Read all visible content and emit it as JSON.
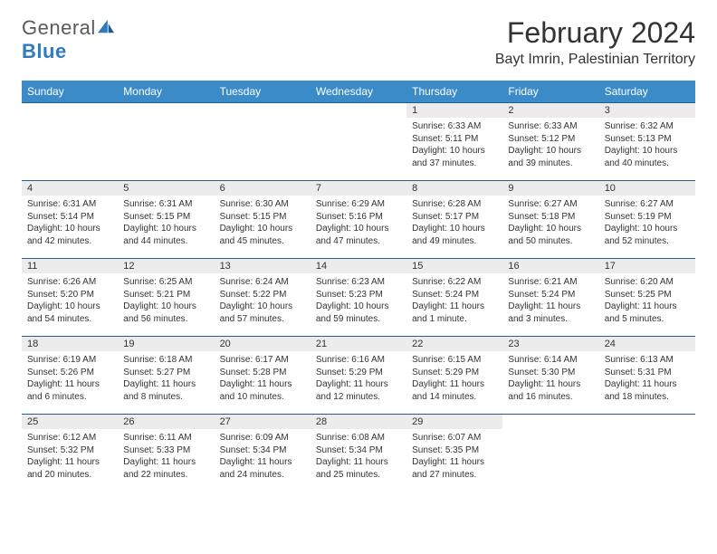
{
  "logo": {
    "text1": "General",
    "text2": "Blue"
  },
  "title": "February 2024",
  "location": "Bayt Imrin, Palestinian Territory",
  "weekdays": [
    "Sunday",
    "Monday",
    "Tuesday",
    "Wednesday",
    "Thursday",
    "Friday",
    "Saturday"
  ],
  "colors": {
    "header_bg": "#3b8bc9",
    "border": "#2d5c8a",
    "daynum_bg": "#ececec",
    "logo_blue": "#2f7bbf"
  },
  "weeks": [
    [
      {
        "n": "",
        "sr": "",
        "ss": "",
        "dl": ""
      },
      {
        "n": "",
        "sr": "",
        "ss": "",
        "dl": ""
      },
      {
        "n": "",
        "sr": "",
        "ss": "",
        "dl": ""
      },
      {
        "n": "",
        "sr": "",
        "ss": "",
        "dl": ""
      },
      {
        "n": "1",
        "sr": "Sunrise: 6:33 AM",
        "ss": "Sunset: 5:11 PM",
        "dl": "Daylight: 10 hours and 37 minutes."
      },
      {
        "n": "2",
        "sr": "Sunrise: 6:33 AM",
        "ss": "Sunset: 5:12 PM",
        "dl": "Daylight: 10 hours and 39 minutes."
      },
      {
        "n": "3",
        "sr": "Sunrise: 6:32 AM",
        "ss": "Sunset: 5:13 PM",
        "dl": "Daylight: 10 hours and 40 minutes."
      }
    ],
    [
      {
        "n": "4",
        "sr": "Sunrise: 6:31 AM",
        "ss": "Sunset: 5:14 PM",
        "dl": "Daylight: 10 hours and 42 minutes."
      },
      {
        "n": "5",
        "sr": "Sunrise: 6:31 AM",
        "ss": "Sunset: 5:15 PM",
        "dl": "Daylight: 10 hours and 44 minutes."
      },
      {
        "n": "6",
        "sr": "Sunrise: 6:30 AM",
        "ss": "Sunset: 5:15 PM",
        "dl": "Daylight: 10 hours and 45 minutes."
      },
      {
        "n": "7",
        "sr": "Sunrise: 6:29 AM",
        "ss": "Sunset: 5:16 PM",
        "dl": "Daylight: 10 hours and 47 minutes."
      },
      {
        "n": "8",
        "sr": "Sunrise: 6:28 AM",
        "ss": "Sunset: 5:17 PM",
        "dl": "Daylight: 10 hours and 49 minutes."
      },
      {
        "n": "9",
        "sr": "Sunrise: 6:27 AM",
        "ss": "Sunset: 5:18 PM",
        "dl": "Daylight: 10 hours and 50 minutes."
      },
      {
        "n": "10",
        "sr": "Sunrise: 6:27 AM",
        "ss": "Sunset: 5:19 PM",
        "dl": "Daylight: 10 hours and 52 minutes."
      }
    ],
    [
      {
        "n": "11",
        "sr": "Sunrise: 6:26 AM",
        "ss": "Sunset: 5:20 PM",
        "dl": "Daylight: 10 hours and 54 minutes."
      },
      {
        "n": "12",
        "sr": "Sunrise: 6:25 AM",
        "ss": "Sunset: 5:21 PM",
        "dl": "Daylight: 10 hours and 56 minutes."
      },
      {
        "n": "13",
        "sr": "Sunrise: 6:24 AM",
        "ss": "Sunset: 5:22 PM",
        "dl": "Daylight: 10 hours and 57 minutes."
      },
      {
        "n": "14",
        "sr": "Sunrise: 6:23 AM",
        "ss": "Sunset: 5:23 PM",
        "dl": "Daylight: 10 hours and 59 minutes."
      },
      {
        "n": "15",
        "sr": "Sunrise: 6:22 AM",
        "ss": "Sunset: 5:24 PM",
        "dl": "Daylight: 11 hours and 1 minute."
      },
      {
        "n": "16",
        "sr": "Sunrise: 6:21 AM",
        "ss": "Sunset: 5:24 PM",
        "dl": "Daylight: 11 hours and 3 minutes."
      },
      {
        "n": "17",
        "sr": "Sunrise: 6:20 AM",
        "ss": "Sunset: 5:25 PM",
        "dl": "Daylight: 11 hours and 5 minutes."
      }
    ],
    [
      {
        "n": "18",
        "sr": "Sunrise: 6:19 AM",
        "ss": "Sunset: 5:26 PM",
        "dl": "Daylight: 11 hours and 6 minutes."
      },
      {
        "n": "19",
        "sr": "Sunrise: 6:18 AM",
        "ss": "Sunset: 5:27 PM",
        "dl": "Daylight: 11 hours and 8 minutes."
      },
      {
        "n": "20",
        "sr": "Sunrise: 6:17 AM",
        "ss": "Sunset: 5:28 PM",
        "dl": "Daylight: 11 hours and 10 minutes."
      },
      {
        "n": "21",
        "sr": "Sunrise: 6:16 AM",
        "ss": "Sunset: 5:29 PM",
        "dl": "Daylight: 11 hours and 12 minutes."
      },
      {
        "n": "22",
        "sr": "Sunrise: 6:15 AM",
        "ss": "Sunset: 5:29 PM",
        "dl": "Daylight: 11 hours and 14 minutes."
      },
      {
        "n": "23",
        "sr": "Sunrise: 6:14 AM",
        "ss": "Sunset: 5:30 PM",
        "dl": "Daylight: 11 hours and 16 minutes."
      },
      {
        "n": "24",
        "sr": "Sunrise: 6:13 AM",
        "ss": "Sunset: 5:31 PM",
        "dl": "Daylight: 11 hours and 18 minutes."
      }
    ],
    [
      {
        "n": "25",
        "sr": "Sunrise: 6:12 AM",
        "ss": "Sunset: 5:32 PM",
        "dl": "Daylight: 11 hours and 20 minutes."
      },
      {
        "n": "26",
        "sr": "Sunrise: 6:11 AM",
        "ss": "Sunset: 5:33 PM",
        "dl": "Daylight: 11 hours and 22 minutes."
      },
      {
        "n": "27",
        "sr": "Sunrise: 6:09 AM",
        "ss": "Sunset: 5:34 PM",
        "dl": "Daylight: 11 hours and 24 minutes."
      },
      {
        "n": "28",
        "sr": "Sunrise: 6:08 AM",
        "ss": "Sunset: 5:34 PM",
        "dl": "Daylight: 11 hours and 25 minutes."
      },
      {
        "n": "29",
        "sr": "Sunrise: 6:07 AM",
        "ss": "Sunset: 5:35 PM",
        "dl": "Daylight: 11 hours and 27 minutes."
      },
      {
        "n": "",
        "sr": "",
        "ss": "",
        "dl": ""
      },
      {
        "n": "",
        "sr": "",
        "ss": "",
        "dl": ""
      }
    ]
  ]
}
